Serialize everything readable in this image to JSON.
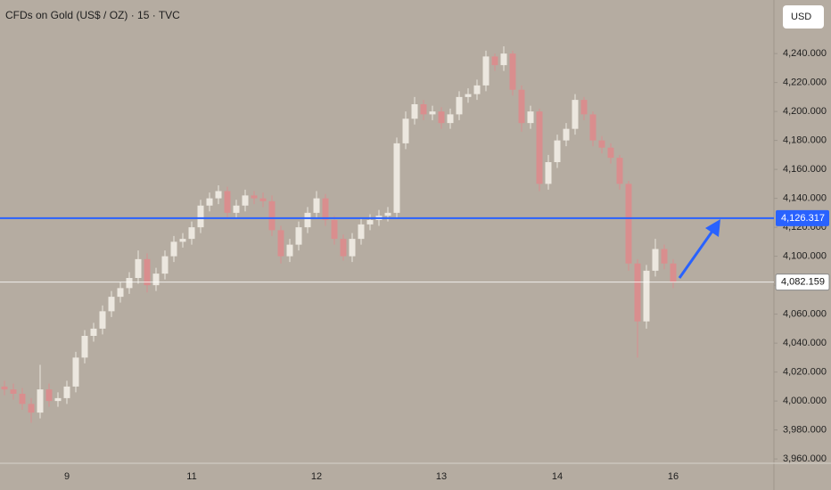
{
  "chart_data": {
    "type": "candlestick",
    "title": "CFDs on Gold (US$ / OZ) · 15 · TVC",
    "currency": "USD",
    "categories": [
      null,
      null,
      null,
      null,
      null,
      null,
      null,
      "9",
      null,
      null,
      null,
      null,
      null,
      null,
      null,
      null,
      null,
      null,
      null,
      null,
      null,
      "11",
      null,
      null,
      null,
      null,
      null,
      null,
      null,
      null,
      null,
      null,
      null,
      null,
      null,
      "12",
      null,
      null,
      null,
      null,
      null,
      null,
      null,
      null,
      null,
      null,
      null,
      null,
      null,
      "13",
      null,
      null,
      null,
      null,
      null,
      null,
      null,
      null,
      null,
      null,
      null,
      null,
      "14",
      null,
      null,
      null,
      null,
      null,
      null,
      null,
      null,
      null,
      null,
      null,
      null,
      "16"
    ],
    "open": [
      4010,
      4008,
      4005,
      3998,
      3992,
      4008,
      4000,
      4002,
      4010,
      4030,
      4045,
      4050,
      4062,
      4072,
      4078,
      4085,
      4098,
      4080,
      4088,
      4100,
      4110,
      4112,
      4120,
      4135,
      4140,
      4145,
      4130,
      4135,
      4142,
      4140,
      4138,
      4118,
      4100,
      4108,
      4120,
      4130,
      4140,
      4125,
      4112,
      4100,
      4112,
      4122,
      4125,
      4128,
      4130,
      4178,
      4195,
      4205,
      4198,
      4200,
      4192,
      4198,
      4210,
      4212,
      4218,
      4238,
      4232,
      4240,
      4215,
      4192,
      4200,
      4150,
      4165,
      4180,
      4188,
      4208,
      4198,
      4180,
      4175,
      4168,
      4150,
      4095,
      4055,
      4090,
      4105,
      4095
    ],
    "high": [
      4014,
      4012,
      4009,
      4002,
      4025,
      4012,
      4006,
      4014,
      4034,
      4049,
      4054,
      4066,
      4076,
      4082,
      4089,
      4104,
      4102,
      4092,
      4104,
      4114,
      4116,
      4124,
      4139,
      4144,
      4149,
      4148,
      4139,
      4146,
      4145,
      4144,
      4142,
      4121,
      4112,
      4124,
      4134,
      4145,
      4143,
      4128,
      4115,
      4116,
      4126,
      4129,
      4132,
      4134,
      4182,
      4200,
      4210,
      4208,
      4204,
      4203,
      4202,
      4214,
      4216,
      4222,
      4242,
      4240,
      4245,
      4242,
      4218,
      4204,
      4202,
      4170,
      4184,
      4192,
      4212,
      4210,
      4200,
      4183,
      4178,
      4170,
      4152,
      4098,
      4094,
      4112,
      4108,
      4098
    ],
    "low": [
      4004,
      4001,
      3994,
      3985,
      3988,
      3996,
      3996,
      3998,
      4006,
      4026,
      4041,
      4046,
      4058,
      4068,
      4074,
      4081,
      4075,
      4076,
      4084,
      4096,
      4106,
      4108,
      4116,
      4131,
      4136,
      4126,
      4126,
      4131,
      4136,
      4134,
      4114,
      4095,
      4096,
      4104,
      4116,
      4126,
      4121,
      4108,
      4097,
      4096,
      4108,
      4118,
      4121,
      4124,
      4126,
      4174,
      4191,
      4194,
      4194,
      4188,
      4188,
      4194,
      4206,
      4208,
      4214,
      4228,
      4228,
      4211,
      4186,
      4188,
      4145,
      4146,
      4161,
      4176,
      4184,
      4194,
      4176,
      4171,
      4164,
      4146,
      4090,
      4030,
      4050,
      4086,
      4091,
      4078
    ],
    "close": [
      4008,
      4005,
      3998,
      3992,
      4008,
      4000,
      4002,
      4010,
      4030,
      4045,
      4050,
      4062,
      4072,
      4078,
      4085,
      4098,
      4080,
      4088,
      4100,
      4110,
      4112,
      4120,
      4135,
      4140,
      4145,
      4130,
      4135,
      4142,
      4140,
      4138,
      4118,
      4100,
      4108,
      4120,
      4130,
      4140,
      4125,
      4112,
      4100,
      4112,
      4122,
      4125,
      4128,
      4130,
      4178,
      4195,
      4205,
      4198,
      4200,
      4192,
      4198,
      4210,
      4212,
      4218,
      4238,
      4232,
      4240,
      4215,
      4192,
      4200,
      4150,
      4165,
      4180,
      4188,
      4208,
      4198,
      4180,
      4175,
      4168,
      4150,
      4095,
      4055,
      4090,
      4105,
      4095,
      4082
    ],
    "up_color": "#ece7df",
    "down_color": "#d98e8e",
    "ylim": [
      3957,
      4277
    ],
    "yticks": [
      {
        "value": 3960,
        "label": "3,960.000"
      },
      {
        "value": 3980,
        "label": "3,980.000"
      },
      {
        "value": 4000,
        "label": "4,000.000"
      },
      {
        "value": 4020,
        "label": "4,020.000"
      },
      {
        "value": 4040,
        "label": "4,040.000"
      },
      {
        "value": 4060,
        "label": "4,060.000"
      },
      {
        "value": 4080,
        "label": "4,080.000"
      },
      {
        "value": 4100,
        "label": "4,100.000"
      },
      {
        "value": 4120,
        "label": "4,120.000"
      },
      {
        "value": 4140,
        "label": "4,140.000"
      },
      {
        "value": 4160,
        "label": "4,160.000"
      },
      {
        "value": 4180,
        "label": "4,180.000"
      },
      {
        "value": 4200,
        "label": "4,200.000"
      },
      {
        "value": 4220,
        "label": "4,220.000"
      },
      {
        "value": 4240,
        "label": "4,240.000"
      }
    ],
    "levels": [
      {
        "value": 4126.317,
        "label": "4,126.317",
        "color": "#2962ff"
      },
      {
        "value": 4082.159,
        "label": "4,082.159",
        "color": "#ffffff"
      }
    ]
  }
}
